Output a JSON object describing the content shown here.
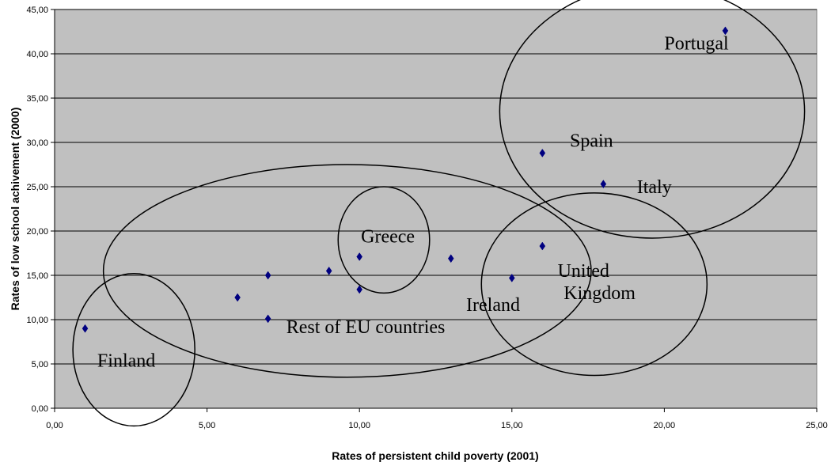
{
  "chart_data": {
    "type": "scatter",
    "title": "",
    "xlabel": "Rates of persistent child poverty (2001)",
    "ylabel": "Rates of low school achivement (2000)",
    "xlim": [
      0,
      25
    ],
    "ylim": [
      0,
      45
    ],
    "x_ticks": [
      "0,00",
      "5,00",
      "10,00",
      "15,00",
      "20,00",
      "25,00"
    ],
    "y_ticks": [
      "0,00",
      "5,00",
      "10,00",
      "15,00",
      "20,00",
      "25,00",
      "30,00",
      "35,00",
      "40,00",
      "45,00"
    ],
    "grid": "horizontal",
    "plot_background": "#c0c0c0",
    "marker_color": "#000080",
    "series": [
      {
        "points": [
          {
            "x": 1,
            "y": 9.0
          },
          {
            "x": 6,
            "y": 12.5
          },
          {
            "x": 7,
            "y": 15.0
          },
          {
            "x": 7,
            "y": 10.1
          },
          {
            "x": 9,
            "y": 15.5
          },
          {
            "x": 10,
            "y": 17.1
          },
          {
            "x": 10,
            "y": 13.4
          },
          {
            "x": 13,
            "y": 16.9
          },
          {
            "x": 15,
            "y": 14.7
          },
          {
            "x": 16,
            "y": 18.3
          },
          {
            "x": 16,
            "y": 28.8
          },
          {
            "x": 18,
            "y": 25.3
          },
          {
            "x": 22,
            "y": 42.6
          }
        ]
      }
    ],
    "annotations": [
      {
        "text": "Portugal",
        "x": 20.0,
        "y": 40.5
      },
      {
        "text": "Spain",
        "x": 16.9,
        "y": 29.5
      },
      {
        "text": "Italy",
        "x": 19.1,
        "y": 24.3
      },
      {
        "text": "Greece",
        "x": 10.05,
        "y": 18.7
      },
      {
        "text": "United",
        "x": 16.5,
        "y": 14.8
      },
      {
        "text": "Kingdom",
        "x": 16.7,
        "y": 12.3
      },
      {
        "text": "Ireland",
        "x": 13.5,
        "y": 11.0
      },
      {
        "text": "Rest of EU countries",
        "x": 7.6,
        "y": 8.5
      },
      {
        "text": "Finland",
        "x": 1.4,
        "y": 4.7
      }
    ],
    "groups": [
      {
        "name": "Portugal-Spain-Italy",
        "cx": 19.6,
        "cy": 33.5,
        "rx": 5.0,
        "ry": 14.3
      },
      {
        "name": "Greece",
        "cx": 10.8,
        "cy": 19.0,
        "rx": 1.5,
        "ry": 6.0
      },
      {
        "name": "Rest of EU",
        "cx": 9.6,
        "cy": 15.5,
        "rx": 8.0,
        "ry": 12.0
      },
      {
        "name": "United Kingdom-Ireland",
        "cx": 17.7,
        "cy": 14.0,
        "rx": 3.7,
        "ry": 10.3
      },
      {
        "name": "Finland",
        "cx": 2.6,
        "cy": 6.6,
        "rx": 2.0,
        "ry": 8.6
      }
    ]
  }
}
